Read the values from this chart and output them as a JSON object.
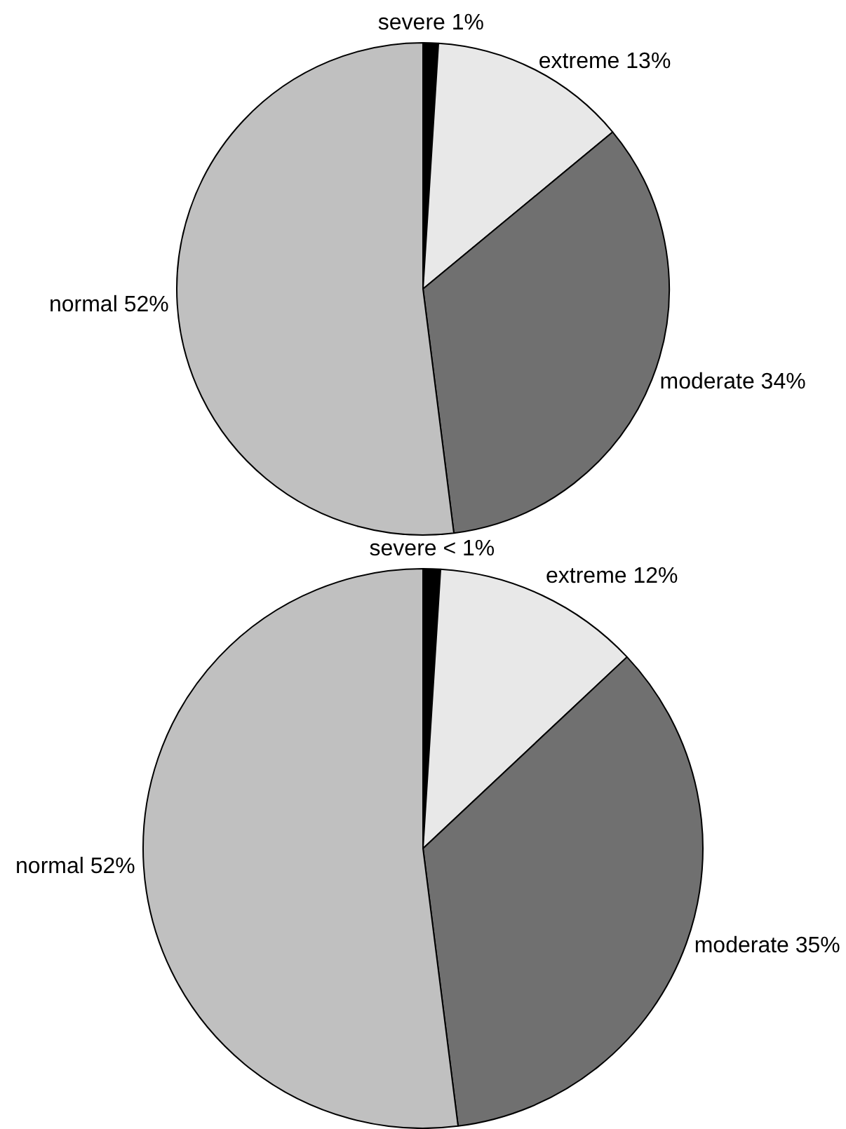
{
  "chart_data": [
    {
      "type": "pie",
      "categories": [
        "severe",
        "extreme",
        "moderate",
        "normal"
      ],
      "values": [
        1,
        13,
        34,
        52
      ],
      "value_labels": [
        "1%",
        "13%",
        "34%",
        "52%"
      ],
      "colors": [
        "#000000",
        "#e8e8e8",
        "#707070",
        "#c0c0c0"
      ],
      "legend": false
    },
    {
      "type": "pie",
      "categories": [
        "severe",
        "extreme",
        "moderate",
        "normal"
      ],
      "values": [
        1,
        12,
        35,
        52
      ],
      "value_labels": [
        "< 1%",
        "12%",
        "35%",
        "52%"
      ],
      "colors": [
        "#000000",
        "#e8e8e8",
        "#707070",
        "#c0c0c0"
      ],
      "legend": false
    }
  ]
}
